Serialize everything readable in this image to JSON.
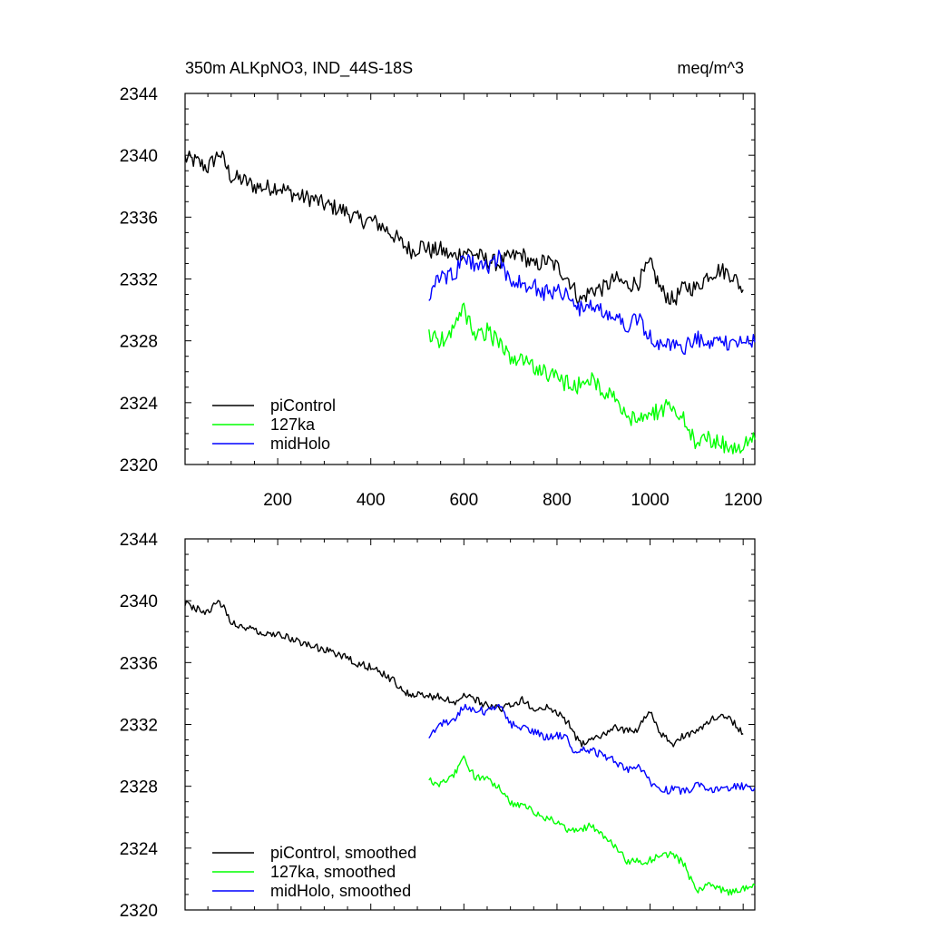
{
  "chart_data": [
    {
      "type": "line",
      "title_left": "350m ALKpNO3, IND_44S-18S",
      "title_right": "meq/m^3",
      "xlim": [
        1,
        1225
      ],
      "ylim": [
        2320,
        2344
      ],
      "x_ticks": [
        200,
        400,
        600,
        800,
        1000,
        1200
      ],
      "y_ticks": [
        2320,
        2324,
        2328,
        2332,
        2336,
        2340,
        2344
      ],
      "legend_position": "bottom-left",
      "series": [
        {
          "name": "piControl",
          "color": "#000000",
          "points": [
            [
              1,
              2339.8
            ],
            [
              25,
              2339.6
            ],
            [
              50,
              2339.2
            ],
            [
              75,
              2340.2
            ],
            [
              100,
              2338.6
            ],
            [
              125,
              2338.4
            ],
            [
              150,
              2338.0
            ],
            [
              175,
              2337.9
            ],
            [
              200,
              2338.0
            ],
            [
              225,
              2337.6
            ],
            [
              250,
              2337.3
            ],
            [
              275,
              2337.2
            ],
            [
              300,
              2336.8
            ],
            [
              325,
              2336.6
            ],
            [
              350,
              2336.3
            ],
            [
              375,
              2335.8
            ],
            [
              400,
              2335.8
            ],
            [
              425,
              2335.4
            ],
            [
              450,
              2334.8
            ],
            [
              470,
              2334.2
            ],
            [
              490,
              2333.8
            ],
            [
              510,
              2334.2
            ],
            [
              530,
              2333.8
            ],
            [
              550,
              2333.9
            ],
            [
              575,
              2333.4
            ],
            [
              600,
              2333.8
            ],
            [
              625,
              2333.6
            ],
            [
              650,
              2333.2
            ],
            [
              675,
              2333.0
            ],
            [
              700,
              2333.4
            ],
            [
              725,
              2333.6
            ],
            [
              750,
              2332.8
            ],
            [
              775,
              2333.2
            ],
            [
              800,
              2332.8
            ],
            [
              825,
              2332.0
            ],
            [
              850,
              2330.6
            ],
            [
              875,
              2331.3
            ],
            [
              900,
              2331.4
            ],
            [
              925,
              2332.0
            ],
            [
              950,
              2331.6
            ],
            [
              975,
              2331.8
            ],
            [
              1000,
              2333.0
            ],
            [
              1025,
              2331.2
            ],
            [
              1050,
              2330.6
            ],
            [
              1075,
              2331.5
            ],
            [
              1100,
              2331.4
            ],
            [
              1125,
              2332.3
            ],
            [
              1150,
              2332.6
            ],
            [
              1175,
              2332.3
            ],
            [
              1200,
              2331.3
            ]
          ]
        },
        {
          "name": "127ka",
          "color": "#00ff00",
          "points": [
            [
              525,
              2328.3
            ],
            [
              550,
              2328.0
            ],
            [
              575,
              2328.6
            ],
            [
              600,
              2330.0
            ],
            [
              625,
              2328.4
            ],
            [
              650,
              2328.6
            ],
            [
              675,
              2327.8
            ],
            [
              700,
              2326.9
            ],
            [
              725,
              2326.6
            ],
            [
              750,
              2326.4
            ],
            [
              775,
              2326.0
            ],
            [
              800,
              2325.5
            ],
            [
              825,
              2325.2
            ],
            [
              850,
              2325.1
            ],
            [
              875,
              2325.6
            ],
            [
              900,
              2324.6
            ],
            [
              925,
              2324.2
            ],
            [
              950,
              2323.0
            ],
            [
              975,
              2323.1
            ],
            [
              1000,
              2323.2
            ],
            [
              1025,
              2323.6
            ],
            [
              1050,
              2323.8
            ],
            [
              1075,
              2322.8
            ],
            [
              1100,
              2321.1
            ],
            [
              1125,
              2321.7
            ],
            [
              1150,
              2321.4
            ],
            [
              1175,
              2321.0
            ],
            [
              1200,
              2321.3
            ],
            [
              1225,
              2321.6
            ]
          ]
        },
        {
          "name": "midHolo",
          "color": "#0000ff",
          "points": [
            [
              525,
              2331.0
            ],
            [
              550,
              2332.2
            ],
            [
              575,
              2332.2
            ],
            [
              600,
              2333.2
            ],
            [
              625,
              2333.0
            ],
            [
              650,
              2332.8
            ],
            [
              675,
              2333.4
            ],
            [
              700,
              2331.9
            ],
            [
              725,
              2331.8
            ],
            [
              750,
              2331.5
            ],
            [
              775,
              2331.1
            ],
            [
              800,
              2331.3
            ],
            [
              825,
              2331.0
            ],
            [
              840,
              2329.9
            ],
            [
              860,
              2330.5
            ],
            [
              875,
              2330.3
            ],
            [
              900,
              2330.0
            ],
            [
              925,
              2329.6
            ],
            [
              950,
              2329.0
            ],
            [
              975,
              2329.4
            ],
            [
              1000,
              2328.2
            ],
            [
              1025,
              2327.6
            ],
            [
              1050,
              2327.8
            ],
            [
              1075,
              2327.6
            ],
            [
              1100,
              2328.2
            ],
            [
              1125,
              2327.6
            ],
            [
              1150,
              2327.8
            ],
            [
              1175,
              2328.0
            ],
            [
              1200,
              2328.0
            ],
            [
              1225,
              2327.9
            ]
          ]
        }
      ]
    },
    {
      "type": "line",
      "xlim": [
        1,
        1225
      ],
      "ylim": [
        2320,
        2344
      ],
      "y_ticks": [
        2320,
        2324,
        2328,
        2332,
        2336,
        2340,
        2344
      ],
      "legend_position": "bottom-left",
      "series": [
        {
          "name": "piControl, smoothed",
          "color": "#000000",
          "points": [
            [
              1,
              2339.8
            ],
            [
              25,
              2339.5
            ],
            [
              50,
              2339.2
            ],
            [
              75,
              2340.0
            ],
            [
              100,
              2338.7
            ],
            [
              125,
              2338.3
            ],
            [
              150,
              2338.1
            ],
            [
              175,
              2337.9
            ],
            [
              200,
              2337.9
            ],
            [
              225,
              2337.6
            ],
            [
              250,
              2337.3
            ],
            [
              275,
              2337.1
            ],
            [
              300,
              2336.8
            ],
            [
              325,
              2336.6
            ],
            [
              350,
              2336.3
            ],
            [
              375,
              2335.9
            ],
            [
              400,
              2335.7
            ],
            [
              425,
              2335.3
            ],
            [
              450,
              2334.8
            ],
            [
              470,
              2334.1
            ],
            [
              490,
              2333.9
            ],
            [
              510,
              2334.0
            ],
            [
              530,
              2333.8
            ],
            [
              550,
              2333.8
            ],
            [
              575,
              2333.4
            ],
            [
              600,
              2333.8
            ],
            [
              625,
              2333.6
            ],
            [
              650,
              2333.2
            ],
            [
              675,
              2333.0
            ],
            [
              700,
              2333.3
            ],
            [
              725,
              2333.6
            ],
            [
              750,
              2332.9
            ],
            [
              775,
              2333.1
            ],
            [
              800,
              2332.8
            ],
            [
              825,
              2332.1
            ],
            [
              850,
              2330.7
            ],
            [
              875,
              2331.2
            ],
            [
              900,
              2331.4
            ],
            [
              925,
              2331.9
            ],
            [
              950,
              2331.6
            ],
            [
              975,
              2331.7
            ],
            [
              1000,
              2332.9
            ],
            [
              1025,
              2331.3
            ],
            [
              1050,
              2330.7
            ],
            [
              1075,
              2331.4
            ],
            [
              1100,
              2331.5
            ],
            [
              1125,
              2332.2
            ],
            [
              1150,
              2332.6
            ],
            [
              1175,
              2332.3
            ],
            [
              1200,
              2331.4
            ]
          ]
        },
        {
          "name": "127ka, smoothed",
          "color": "#00ff00",
          "points": [
            [
              525,
              2328.4
            ],
            [
              550,
              2328.1
            ],
            [
              575,
              2328.6
            ],
            [
              600,
              2329.9
            ],
            [
              625,
              2328.5
            ],
            [
              650,
              2328.5
            ],
            [
              675,
              2327.9
            ],
            [
              700,
              2326.9
            ],
            [
              725,
              2326.7
            ],
            [
              750,
              2326.4
            ],
            [
              775,
              2326.0
            ],
            [
              800,
              2325.6
            ],
            [
              825,
              2325.2
            ],
            [
              850,
              2325.2
            ],
            [
              875,
              2325.5
            ],
            [
              900,
              2324.7
            ],
            [
              925,
              2324.2
            ],
            [
              950,
              2323.1
            ],
            [
              975,
              2323.1
            ],
            [
              1000,
              2323.2
            ],
            [
              1025,
              2323.5
            ],
            [
              1050,
              2323.7
            ],
            [
              1075,
              2322.8
            ],
            [
              1100,
              2321.2
            ],
            [
              1125,
              2321.6
            ],
            [
              1150,
              2321.4
            ],
            [
              1175,
              2321.1
            ],
            [
              1200,
              2321.3
            ],
            [
              1225,
              2321.6
            ]
          ]
        },
        {
          "name": "midHolo, smoothed",
          "color": "#0000ff",
          "points": [
            [
              525,
              2331.0
            ],
            [
              550,
              2332.1
            ],
            [
              575,
              2332.2
            ],
            [
              600,
              2333.1
            ],
            [
              625,
              2333.0
            ],
            [
              650,
              2332.8
            ],
            [
              675,
              2333.3
            ],
            [
              700,
              2332.0
            ],
            [
              725,
              2331.8
            ],
            [
              750,
              2331.5
            ],
            [
              775,
              2331.2
            ],
            [
              800,
              2331.3
            ],
            [
              825,
              2331.0
            ],
            [
              840,
              2330.0
            ],
            [
              860,
              2330.4
            ],
            [
              875,
              2330.3
            ],
            [
              900,
              2330.0
            ],
            [
              925,
              2329.6
            ],
            [
              950,
              2329.1
            ],
            [
              975,
              2329.3
            ],
            [
              1000,
              2328.3
            ],
            [
              1025,
              2327.7
            ],
            [
              1050,
              2327.8
            ],
            [
              1075,
              2327.6
            ],
            [
              1100,
              2328.1
            ],
            [
              1125,
              2327.7
            ],
            [
              1150,
              2327.8
            ],
            [
              1175,
              2328.0
            ],
            [
              1200,
              2328.0
            ],
            [
              1225,
              2327.9
            ]
          ]
        }
      ]
    }
  ]
}
